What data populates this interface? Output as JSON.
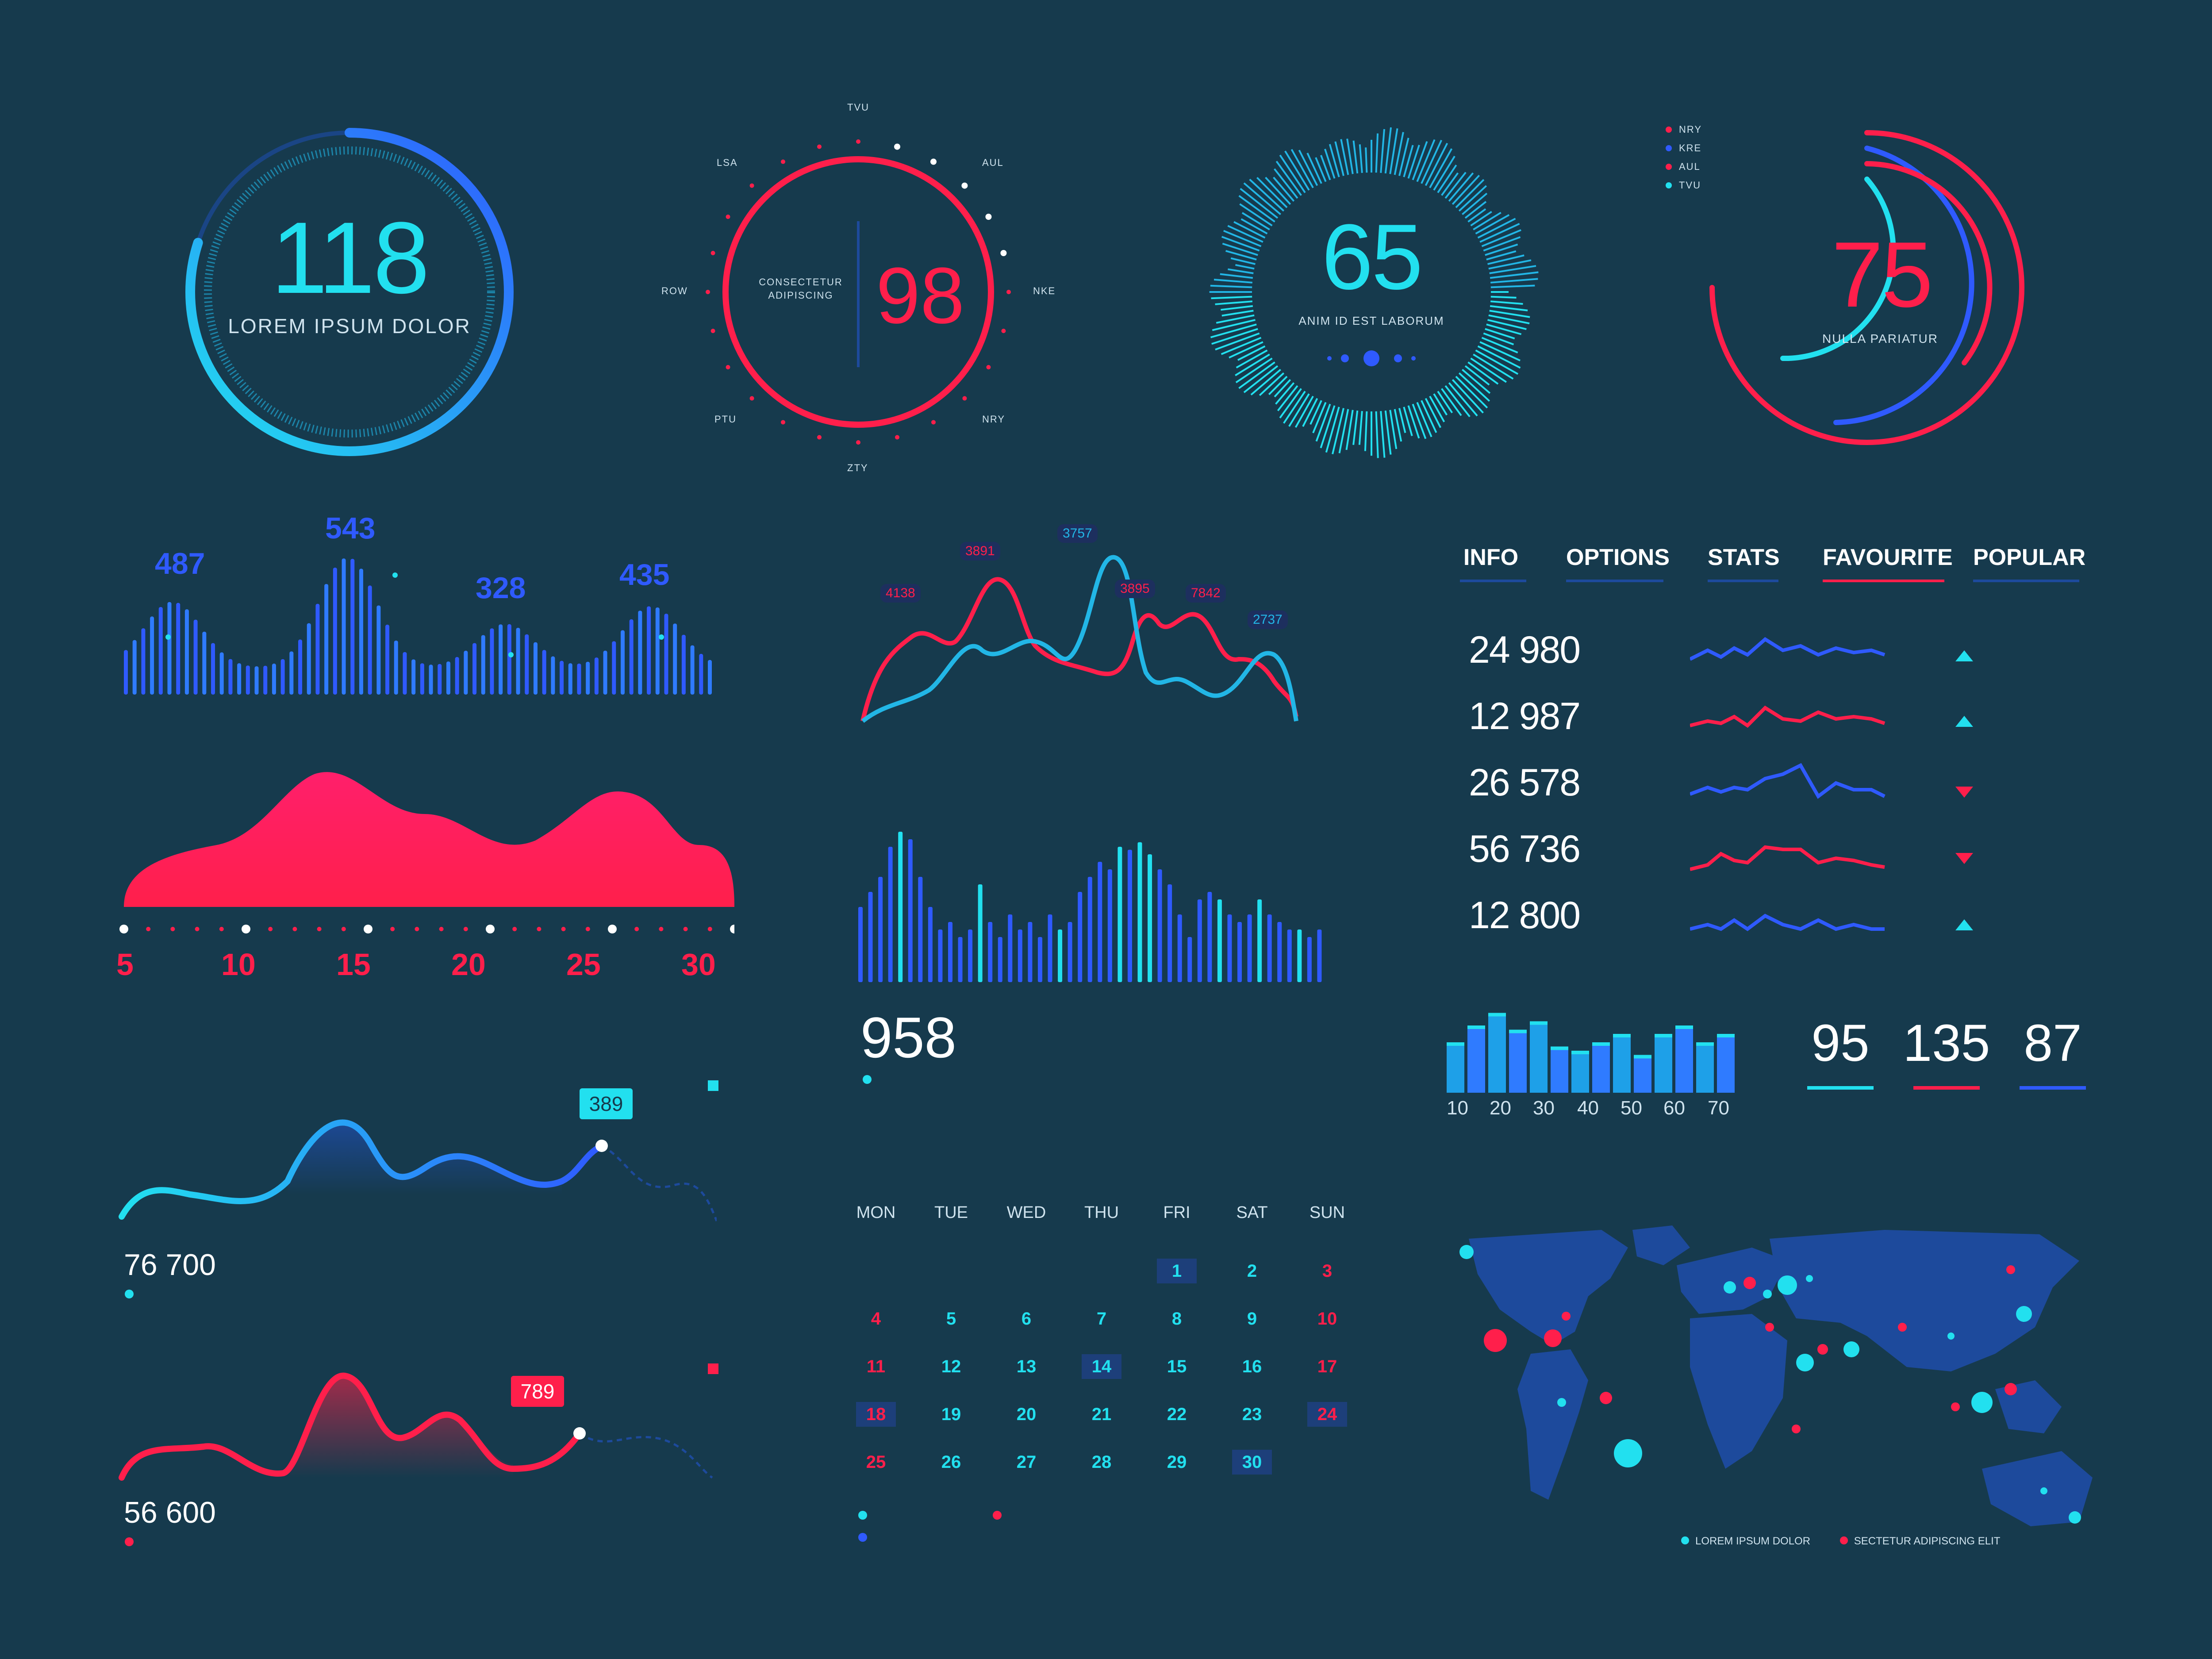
{
  "colors": {
    "background": "#163a4d",
    "cyan": "#22e0ef",
    "blue": "#2f5aff",
    "red": "#ff1f4b",
    "dark_blue": "#1d4a9c"
  },
  "gauges": {
    "g1": {
      "value": "118",
      "label": "LOREM IPSUM DOLOR",
      "progress": 0.8
    },
    "g2": {
      "value": "98",
      "label_line1": "CONSECTETUR",
      "label_line2": "ADIPISCING",
      "ticks": [
        "TVU",
        "AUL",
        "NKE",
        "NRY",
        "ZTY",
        "PTU",
        "ROW",
        "LSA"
      ]
    },
    "g3": {
      "value": "65",
      "label": "ANIM ID EST LABORUM"
    },
    "g4": {
      "value": "75",
      "label": "NULLA PARIATUR",
      "legend": [
        {
          "name": "NRY",
          "color": "#ff1f4b"
        },
        {
          "name": "KRE",
          "color": "#2f5aff"
        },
        {
          "name": "AUL",
          "color": "#ff1f4b"
        },
        {
          "name": "TVU",
          "color": "#22e0ef"
        }
      ]
    }
  },
  "wave_bars": {
    "peaks": [
      "487",
      "543",
      "328",
      "435"
    ]
  },
  "area_chart": {
    "x_labels": [
      "5",
      "10",
      "15",
      "20",
      "25",
      "30"
    ]
  },
  "line_chart": {
    "callouts": [
      "4138",
      "3891",
      "3757",
      "3895",
      "7842",
      "2737"
    ]
  },
  "bar_chart": {
    "value": "958"
  },
  "tabs": [
    {
      "label": "INFO"
    },
    {
      "label": "OPTIONS"
    },
    {
      "label": "STATS"
    },
    {
      "label": "FAVOURITE"
    },
    {
      "label": "POPULAR"
    }
  ],
  "stats_rows": [
    {
      "value": "24 980",
      "trend": "up"
    },
    {
      "value": "12 987",
      "trend": "up"
    },
    {
      "value": "26 578",
      "trend": "down"
    },
    {
      "value": "56 736",
      "trend": "down"
    },
    {
      "value": "12 800",
      "trend": "up"
    }
  ],
  "mini_bars": {
    "x_labels": [
      "10",
      "20",
      "30",
      "40",
      "50",
      "60",
      "70"
    ]
  },
  "kpis": [
    {
      "value": "95",
      "color": "#22e0ef"
    },
    {
      "value": "135",
      "color": "#ff1f4b"
    },
    {
      "value": "87",
      "color": "#2f5aff"
    }
  ],
  "wave_cards": [
    {
      "value": "76 700",
      "tooltip": "389"
    },
    {
      "value": "56 600",
      "tooltip": "789"
    }
  ],
  "calendar": {
    "days_of_week": [
      "MON",
      "TUE",
      "WED",
      "THU",
      "FRI",
      "SAT",
      "SUN"
    ],
    "weeks": [
      [
        "",
        "",
        "",
        "",
        "1",
        "2",
        "3"
      ],
      [
        "4",
        "5",
        "6",
        "7",
        "8",
        "9",
        "10"
      ],
      [
        "11",
        "12",
        "13",
        "14",
        "15",
        "16",
        "17"
      ],
      [
        "18",
        "19",
        "20",
        "21",
        "22",
        "23",
        "24"
      ],
      [
        "25",
        "26",
        "27",
        "28",
        "29",
        "30",
        ""
      ]
    ]
  },
  "map": {
    "legend": [
      {
        "label": "LOREM IPSUM DOLOR",
        "color": "#22e0ef"
      },
      {
        "label": "SECTETUR ADIPISCING ELIT",
        "color": "#ff1f4b"
      }
    ]
  }
}
